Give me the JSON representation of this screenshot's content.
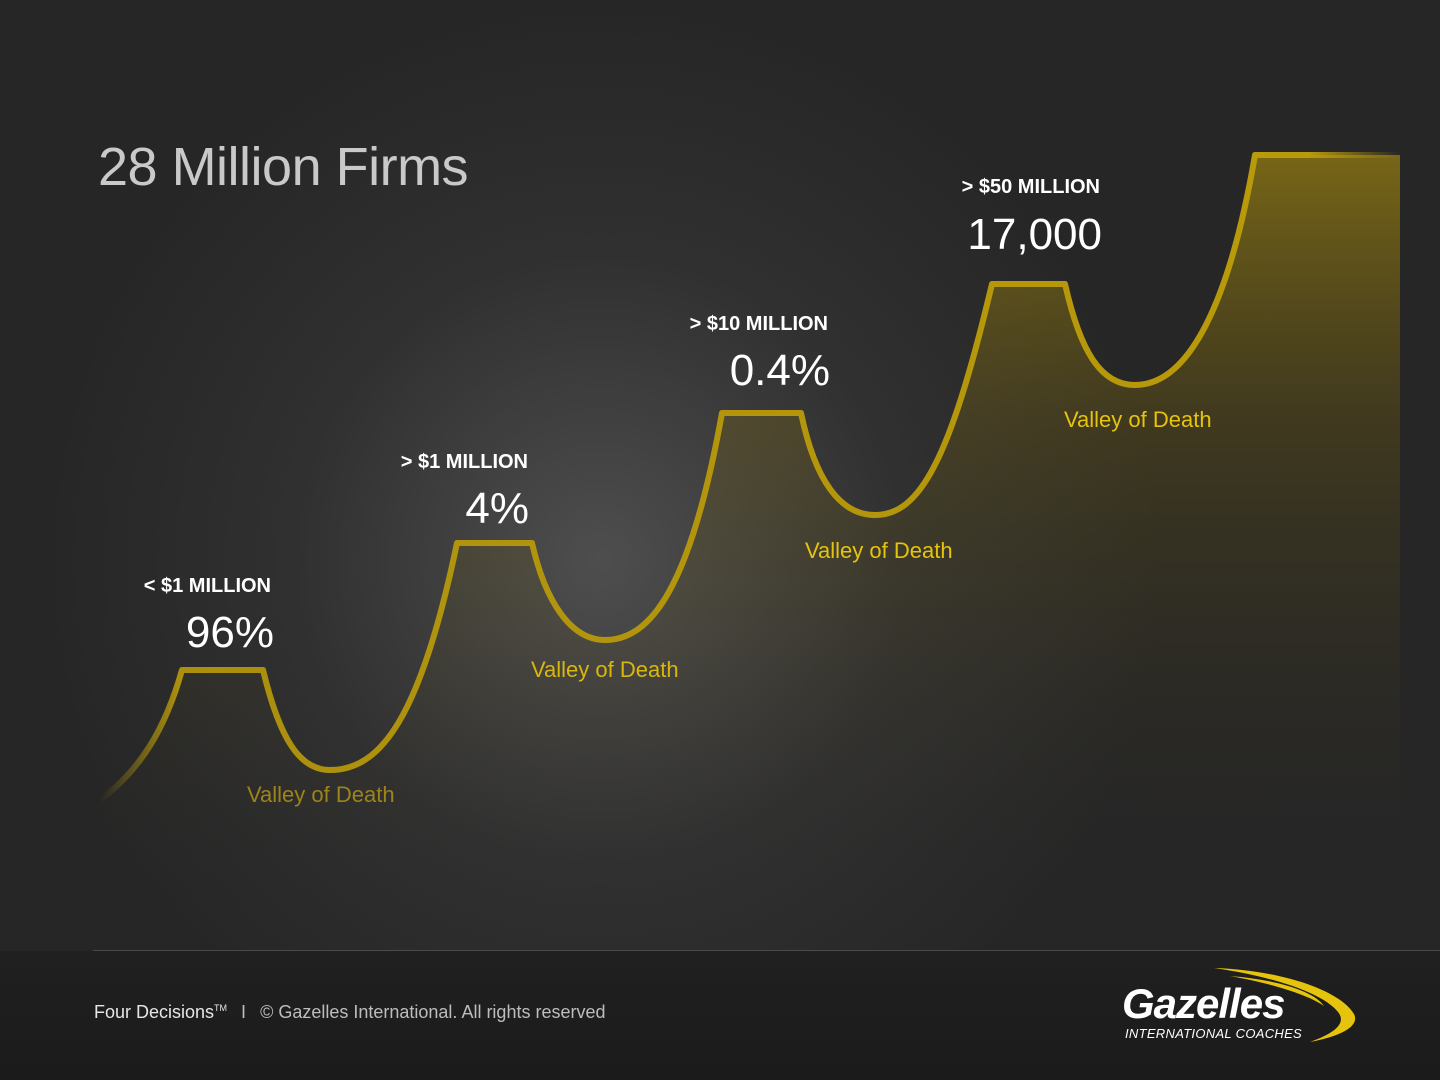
{
  "title": "28 Million Firms",
  "tiers": [
    {
      "label": "< $1 MILLION",
      "value": "96%",
      "valley": "Valley of Death"
    },
    {
      "label": "> $1 MILLION",
      "value": "4%",
      "valley": "Valley of Death"
    },
    {
      "label": "> $10 MILLION",
      "value": "0.4%",
      "valley": "Valley of Death"
    },
    {
      "label": "> $50 MILLION",
      "value": "17,000",
      "valley": "Valley of Death"
    }
  ],
  "colors": {
    "background": "#262626",
    "curve": "#b99a0a",
    "valley_text": "#e6c30d",
    "valley_text_dim": "#9c8419",
    "text": "#ffffff"
  },
  "footer": {
    "product": "Four Decisions",
    "trademark": "TM",
    "separator": "I",
    "copyright": "© Gazelles International.  All rights reserved"
  },
  "logo": {
    "name": "Gazelles",
    "subtitle": "INTERNATIONAL COACHES"
  }
}
